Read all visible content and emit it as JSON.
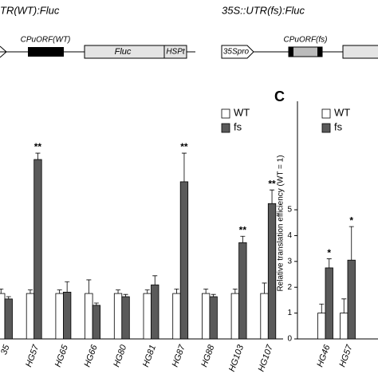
{
  "diagram": {
    "left_construct": "TR(WT):Fluc",
    "right_construct": "35S::UTR(fs):Fluc",
    "left_uorf": "CPuORF(WT)",
    "left_fluc": "Fluc",
    "left_term": "HSPt",
    "right_promoter": "35Spro",
    "right_uorf": "CPuORF(fs)"
  },
  "chart_data": [
    {
      "type": "bar",
      "categories": [
        "35",
        "HG57",
        "HG65",
        "HG66",
        "HG80",
        "HG81",
        "HG87",
        "HG88",
        "HG103",
        "HG107"
      ],
      "series": [
        {
          "name": "WT",
          "color": "#ffffff",
          "values": [
            1.0,
            1.0,
            1.0,
            1.0,
            1.0,
            1.0,
            1.0,
            1.0,
            1.0,
            1.0
          ],
          "errors": [
            0.1,
            0.08,
            0.08,
            0.3,
            0.08,
            0.08,
            0.1,
            0.1,
            0.1,
            0.23
          ]
        },
        {
          "name": "fs",
          "color": "#5a5a5a",
          "values": [
            0.88,
            3.95,
            1.03,
            0.74,
            0.93,
            1.19,
            3.46,
            0.93,
            2.12,
            2.98
          ],
          "errors": [
            0.05,
            0.14,
            0.23,
            0.05,
            0.05,
            0.2,
            0.63,
            0.05,
            0.14,
            0.3
          ]
        }
      ],
      "significance": [
        {
          "category": "HG57",
          "label": "**"
        },
        {
          "category": "HG87",
          "label": "**"
        },
        {
          "category": "HG103",
          "label": "**"
        },
        {
          "category": "HG107",
          "label": "**"
        }
      ],
      "ylim": [
        0,
        4.6
      ]
    },
    {
      "type": "bar",
      "panel": "C",
      "ylabel": "Relative translation efficiency (WT = 1)",
      "categories": [
        "HG46",
        "HG57"
      ],
      "series": [
        {
          "name": "WT",
          "color": "#ffffff",
          "values": [
            1.0,
            1.0
          ],
          "errors": [
            0.35,
            0.55
          ]
        },
        {
          "name": "fs",
          "color": "#5a5a5a",
          "values": [
            2.75,
            3.05
          ],
          "errors": [
            0.35,
            1.3
          ]
        }
      ],
      "significance": [
        {
          "category": "HG46",
          "label": "*"
        },
        {
          "category": "HG57",
          "label": "*"
        }
      ],
      "ylim": [
        0,
        9.2
      ],
      "yticks": [
        0,
        1,
        2,
        3,
        4,
        5
      ]
    }
  ]
}
